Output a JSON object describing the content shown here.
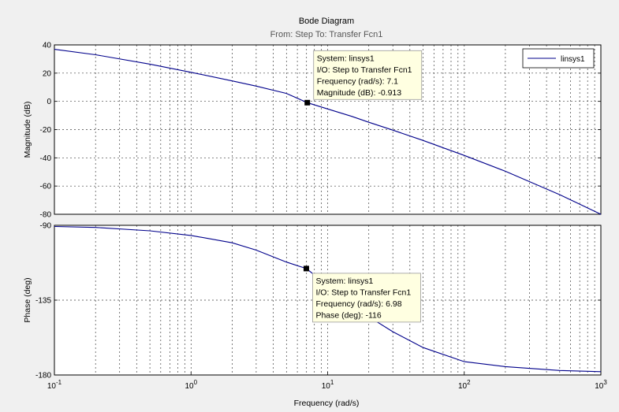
{
  "chart_data": {
    "type": "line",
    "title": "Bode Diagram",
    "subtitle": "From: Step  To: Transfer Fcn1",
    "xlabel": "Frequency  (rad/s)",
    "xscale": "log",
    "xlim": [
      0.1,
      1000
    ],
    "x_ticks": [
      {
        "value": 0.1,
        "base": "10",
        "exp": "-1"
      },
      {
        "value": 1,
        "base": "10",
        "exp": "0"
      },
      {
        "value": 10,
        "base": "10",
        "exp": "1"
      },
      {
        "value": 100,
        "base": "10",
        "exp": "2"
      },
      {
        "value": 1000,
        "base": "10",
        "exp": "3"
      }
    ],
    "grid": true,
    "legend": {
      "position": "top-right",
      "entries": [
        "linsys1"
      ]
    },
    "series_color": "#00008b",
    "panels": [
      {
        "id": "magnitude",
        "ylabel": "Magnitude (dB)",
        "ylim": [
          -80,
          40
        ],
        "y_ticks": [
          40,
          20,
          0,
          -20,
          -40,
          -60,
          -80
        ],
        "series": {
          "name": "linsys1",
          "x": [
            0.1,
            0.2,
            0.5,
            1,
            2,
            3,
            5,
            7.1,
            10,
            15,
            20,
            30,
            50,
            100,
            200,
            500,
            1000
          ],
          "y": [
            36.9,
            33.0,
            26.4,
            20.6,
            14.5,
            10.8,
            5.6,
            -0.913,
            -5.4,
            -10.6,
            -14.8,
            -20.4,
            -27.7,
            -38.3,
            -49.5,
            -66.1,
            -80.0
          ]
        },
        "datatip": {
          "x": 7.1,
          "y": -0.913,
          "lines": [
            "System: linsys1",
            "I/O: Step to Transfer Fcn1",
            "Frequency (rad/s): 7.1",
            "Magnitude (dB): -0.913"
          ]
        }
      },
      {
        "id": "phase",
        "ylabel": "Phase (deg)",
        "ylim": [
          -180,
          -90
        ],
        "y_ticks": [
          -90,
          -135,
          -180
        ],
        "series": {
          "name": "linsys1",
          "x": [
            0.1,
            0.2,
            0.5,
            1,
            2,
            3,
            5,
            6.98,
            10,
            15,
            20,
            30,
            50,
            100,
            200,
            500,
            1000
          ],
          "y": [
            -90.7,
            -91.3,
            -93.3,
            -96.1,
            -100.5,
            -104.9,
            -112.1,
            -116.0,
            -126.0,
            -137.2,
            -145.0,
            -154.0,
            -163.5,
            -172.0,
            -175.0,
            -177.3,
            -178.0
          ]
        },
        "datatip": {
          "x": 6.98,
          "y": -116,
          "lines": [
            "System: linsys1",
            "I/O: Step to Transfer Fcn1",
            "Frequency (rad/s): 6.98",
            "Phase (deg): -116"
          ]
        }
      }
    ]
  }
}
